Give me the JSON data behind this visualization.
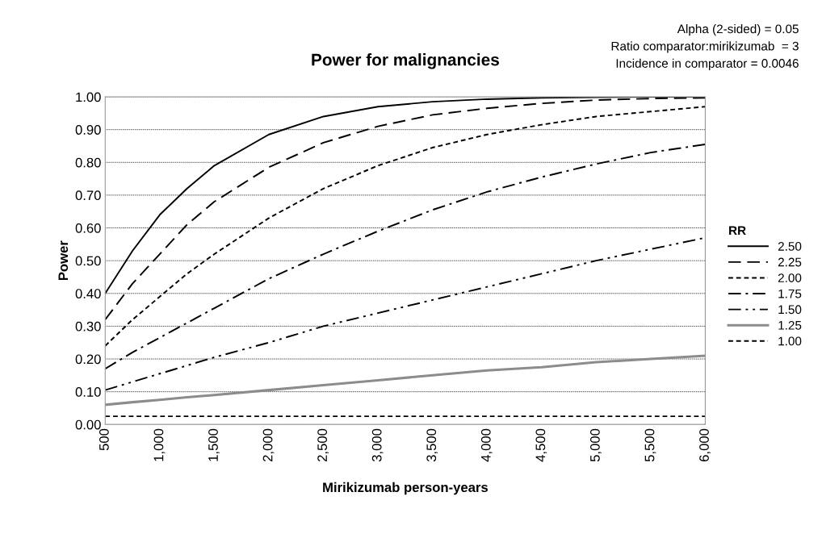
{
  "chart_data": {
    "type": "line",
    "title": "Power for malignancies",
    "xlabel": "Mirikizumab person-years",
    "ylabel": "Power",
    "legend_title": "RR",
    "annotations": [
      "Alpha (2-sided) = 0.05",
      "Ratio comparator:mirikizumab  = 3",
      "Incidence in comparator = 0.0046"
    ],
    "x": [
      500,
      750,
      1000,
      1250,
      1500,
      2000,
      2500,
      3000,
      3500,
      4000,
      4500,
      5000,
      5500,
      6000
    ],
    "series": [
      {
        "name": "2.50",
        "color": "#000000",
        "line_style": "solid",
        "values": [
          0.4,
          0.53,
          0.64,
          0.72,
          0.79,
          0.885,
          0.94,
          0.97,
          0.985,
          0.993,
          0.997,
          0.999,
          1.0,
          1.0
        ]
      },
      {
        "name": "2.25",
        "color": "#000000",
        "line_style": "dashed",
        "values": [
          0.32,
          0.43,
          0.52,
          0.61,
          0.68,
          0.785,
          0.86,
          0.91,
          0.945,
          0.965,
          0.98,
          0.99,
          0.995,
          0.997
        ]
      },
      {
        "name": "2.00",
        "color": "#000000",
        "line_style": "dotted",
        "values": [
          0.24,
          0.32,
          0.39,
          0.46,
          0.52,
          0.63,
          0.72,
          0.79,
          0.845,
          0.885,
          0.915,
          0.94,
          0.955,
          0.97
        ]
      },
      {
        "name": "1.75",
        "color": "#000000",
        "line_style": "dashdot",
        "values": [
          0.17,
          0.22,
          0.265,
          0.31,
          0.355,
          0.445,
          0.52,
          0.59,
          0.655,
          0.71,
          0.755,
          0.795,
          0.83,
          0.855
        ]
      },
      {
        "name": "1.50",
        "color": "#000000",
        "line_style": "dashdotdot",
        "values": [
          0.105,
          0.13,
          0.155,
          0.18,
          0.205,
          0.25,
          0.3,
          0.34,
          0.38,
          0.42,
          0.46,
          0.5,
          0.535,
          0.57
        ]
      },
      {
        "name": "1.25",
        "color": "#8c8c8c",
        "line_style": "solid",
        "values": [
          0.06,
          0.068,
          0.075,
          0.083,
          0.09,
          0.105,
          0.12,
          0.135,
          0.15,
          0.165,
          0.175,
          0.19,
          0.2,
          0.21
        ]
      },
      {
        "name": "1.00",
        "color": "#000000",
        "line_style": "dotted",
        "values": [
          0.025,
          0.025,
          0.025,
          0.025,
          0.025,
          0.025,
          0.025,
          0.025,
          0.025,
          0.025,
          0.025,
          0.025,
          0.025,
          0.025
        ]
      }
    ],
    "xlim": [
      500,
      6000
    ],
    "ylim": [
      0,
      1
    ],
    "xticks": [
      {
        "value": 500,
        "label": "500"
      },
      {
        "value": 1000,
        "label": "1,000"
      },
      {
        "value": 1500,
        "label": "1,500"
      },
      {
        "value": 2000,
        "label": "2,000"
      },
      {
        "value": 2500,
        "label": "2,500"
      },
      {
        "value": 3000,
        "label": "3,000"
      },
      {
        "value": 3500,
        "label": "3,500"
      },
      {
        "value": 4000,
        "label": "4,000"
      },
      {
        "value": 4500,
        "label": "4,500"
      },
      {
        "value": 5000,
        "label": "5,000"
      },
      {
        "value": 5500,
        "label": "5,500"
      },
      {
        "value": 6000,
        "label": "6,000"
      }
    ],
    "yticks": [
      {
        "value": 0,
        "label": "0.00"
      },
      {
        "value": 0.1,
        "label": "0.10"
      },
      {
        "value": 0.2,
        "label": "0.20"
      },
      {
        "value": 0.3,
        "label": "0.30"
      },
      {
        "value": 0.4,
        "label": "0.40"
      },
      {
        "value": 0.5,
        "label": "0.50"
      },
      {
        "value": 0.6,
        "label": "0.60"
      },
      {
        "value": 0.7,
        "label": "0.70"
      },
      {
        "value": 0.8,
        "label": "0.80"
      },
      {
        "value": 0.9,
        "label": "0.90"
      },
      {
        "value": 1,
        "label": "1.00"
      }
    ],
    "grid": "y",
    "legend": "right",
    "marker": "none"
  }
}
